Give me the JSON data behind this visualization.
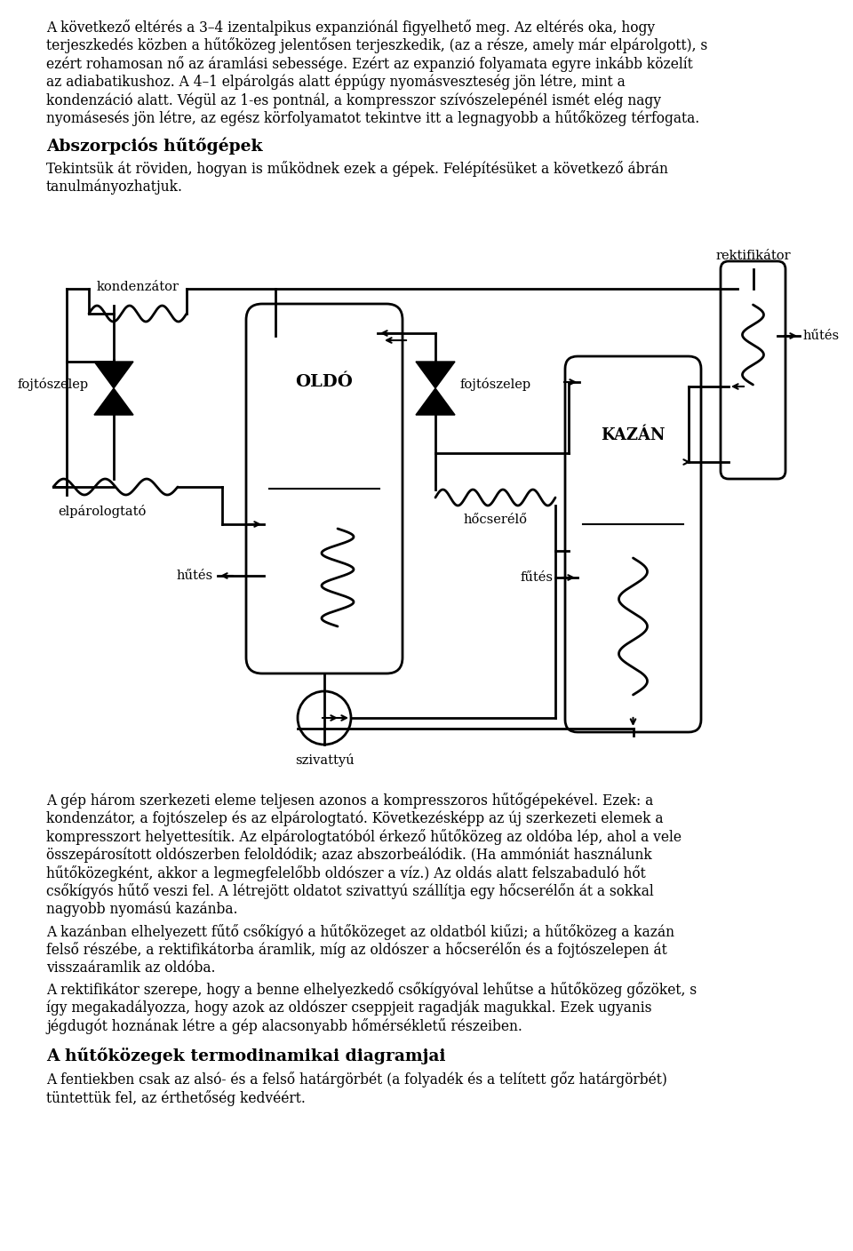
{
  "bg_color": "#ffffff",
  "body_fs": 11.2,
  "bold_fs": 13.5,
  "label_fs": 10.5,
  "LM": 52,
  "RM": 908,
  "para1_lines": [
    "A következő eltérés a 3–4 izentalpikus expanziónál figyelhető meg. Az eltérés oka, hogy",
    "terjeszkedés közben a hűtőközeg jelentősen terjeszkedik, (az a része, amely már elpárolgott), s",
    "ezért rohamosan nő az áramlási sebessége. Ezért az expanzió folyamata egyre inkább közelít",
    "az adiabatikushoz. A 4–1 elpárolgás alatt éppúgy nyomásveszteség jön létre, mint a",
    "kondenzáció alatt. Végül az 1-es pontnál, a kompresszor szívószelepénél ismét elég nagy",
    "nyomásesés jön létre, az egész körfolyamatot tekintve itt a legnagyobb a hűtőközeg térfogata."
  ],
  "heading1": "Abszorpciós hűtőgépek",
  "para2_lines": [
    "Tekintsük át röviden, hogyan is működnek ezek a gépek. Felépítésüket a következő ábrán",
    "tanulmányozhatjuk."
  ],
  "para3_lines": [
    "A gép három szerkezeti eleme teljesen azonos a kompresszoros hűtőgépekével. Ezek: a",
    "kondenzátor, a fojtószelep és az elpárologtató. Következésképp az új szerkezeti elemek a",
    "kompresszort helyettesítik. Az elpárologtatóból érkező hűtőközeg az oldóba lép, ahol a vele",
    "összepárosított oldószerben feloldódik; azaz abszorbeálódik. (Ha ammóniát használunk",
    "hűtőközegként, akkor a legmegfelelőbb oldószer a víz.) Az oldás alatt felszabaduló hőt",
    "csőkígyós hűtő veszi fel. A létrejött oldatot szivattyú szállítja egy hőcserélőn át a sokkal",
    "nagyobb nyomású kazánba."
  ],
  "para4_lines": [
    "A kazánban elhelyezett fűtő csőkígyó a hűtőközeget az oldatból kiűzi; a hűtőközeg a kazán",
    "felső részébe, a rektifikátorba áramlik, míg az oldószer a hőcserélőn és a fojtószelepen át",
    "visszaáramlik az oldóba."
  ],
  "para5_lines": [
    "A rektifikátor szerepe, hogy a benne elhelyezkedő csőkígyóval lehűtse a hűtőközeg gőzöket, s",
    "így megakadályozza, hogy azok az oldószer cseppjeit ragadják magukkal. Ezek ugyanis",
    "jégdugót hoznának létre a gép alacsonyabb hőmérsékletű részeiben."
  ],
  "heading2": "A hűtőközegek termodinamikai diagramjai",
  "para6_lines": [
    "A fentiekben csak az alsó- és a felső határgörbét (a folyadék és a telített gőz határgörbét)",
    "tüntettük fel, az érthetőség kedvéért."
  ]
}
